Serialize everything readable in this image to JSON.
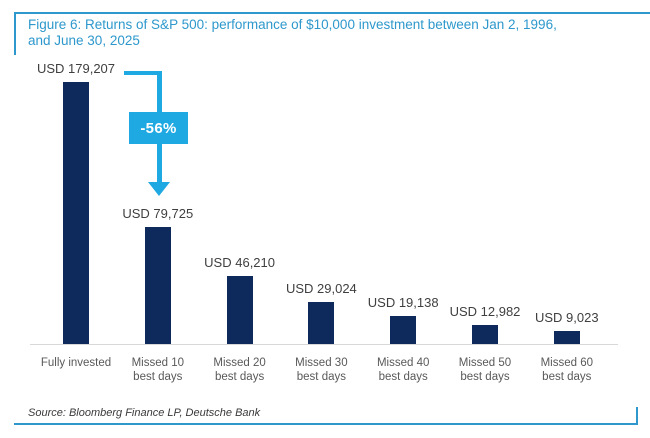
{
  "title": {
    "line1": "Figure 6: Returns of S&P 500: performance of $10,000 investment between Jan 2, 1996,",
    "line2": "and June 30, 2025"
  },
  "annotation": {
    "label": "-56%"
  },
  "source": {
    "text": "Source: Bloomberg Finance LP, Deutsche Bank"
  },
  "colors": {
    "bar": "#0e2a5c",
    "accent": "#1fa9e2",
    "title_blue": "#2e98cc",
    "value_label": "#3f3f3f",
    "category_label": "#595959",
    "baseline": "#d8d8d8"
  },
  "chart_data": {
    "type": "bar",
    "title": "Figure 6: Returns of S&P 500: performance of $10,000 investment between Jan 2, 1996, and June 30, 2025",
    "categories": [
      "Fully invested",
      "Missed 10 best days",
      "Missed 20 best days",
      "Missed 30 best days",
      "Missed 40 best days",
      "Missed 50 best days",
      "Missed 60 best days"
    ],
    "category_lines": [
      [
        "Fully invested"
      ],
      [
        "Missed 10",
        "best days"
      ],
      [
        "Missed 20",
        "best days"
      ],
      [
        "Missed 30",
        "best days"
      ],
      [
        "Missed 40",
        "best days"
      ],
      [
        "Missed 50",
        "best days"
      ],
      [
        "Missed 60",
        "best days"
      ]
    ],
    "values": [
      179207,
      79725,
      46210,
      29024,
      19138,
      12982,
      9023
    ],
    "value_labels": [
      "USD 179,207",
      "USD 79,725",
      "USD 46,210",
      "USD 29,024",
      "USD 19,138",
      "USD 12,982",
      "USD 9,023"
    ],
    "xlabel": "",
    "ylabel": "",
    "ylim": [
      0,
      180000
    ],
    "grid": false,
    "legend": false,
    "annotations": [
      {
        "text": "-56%"
      }
    ]
  }
}
